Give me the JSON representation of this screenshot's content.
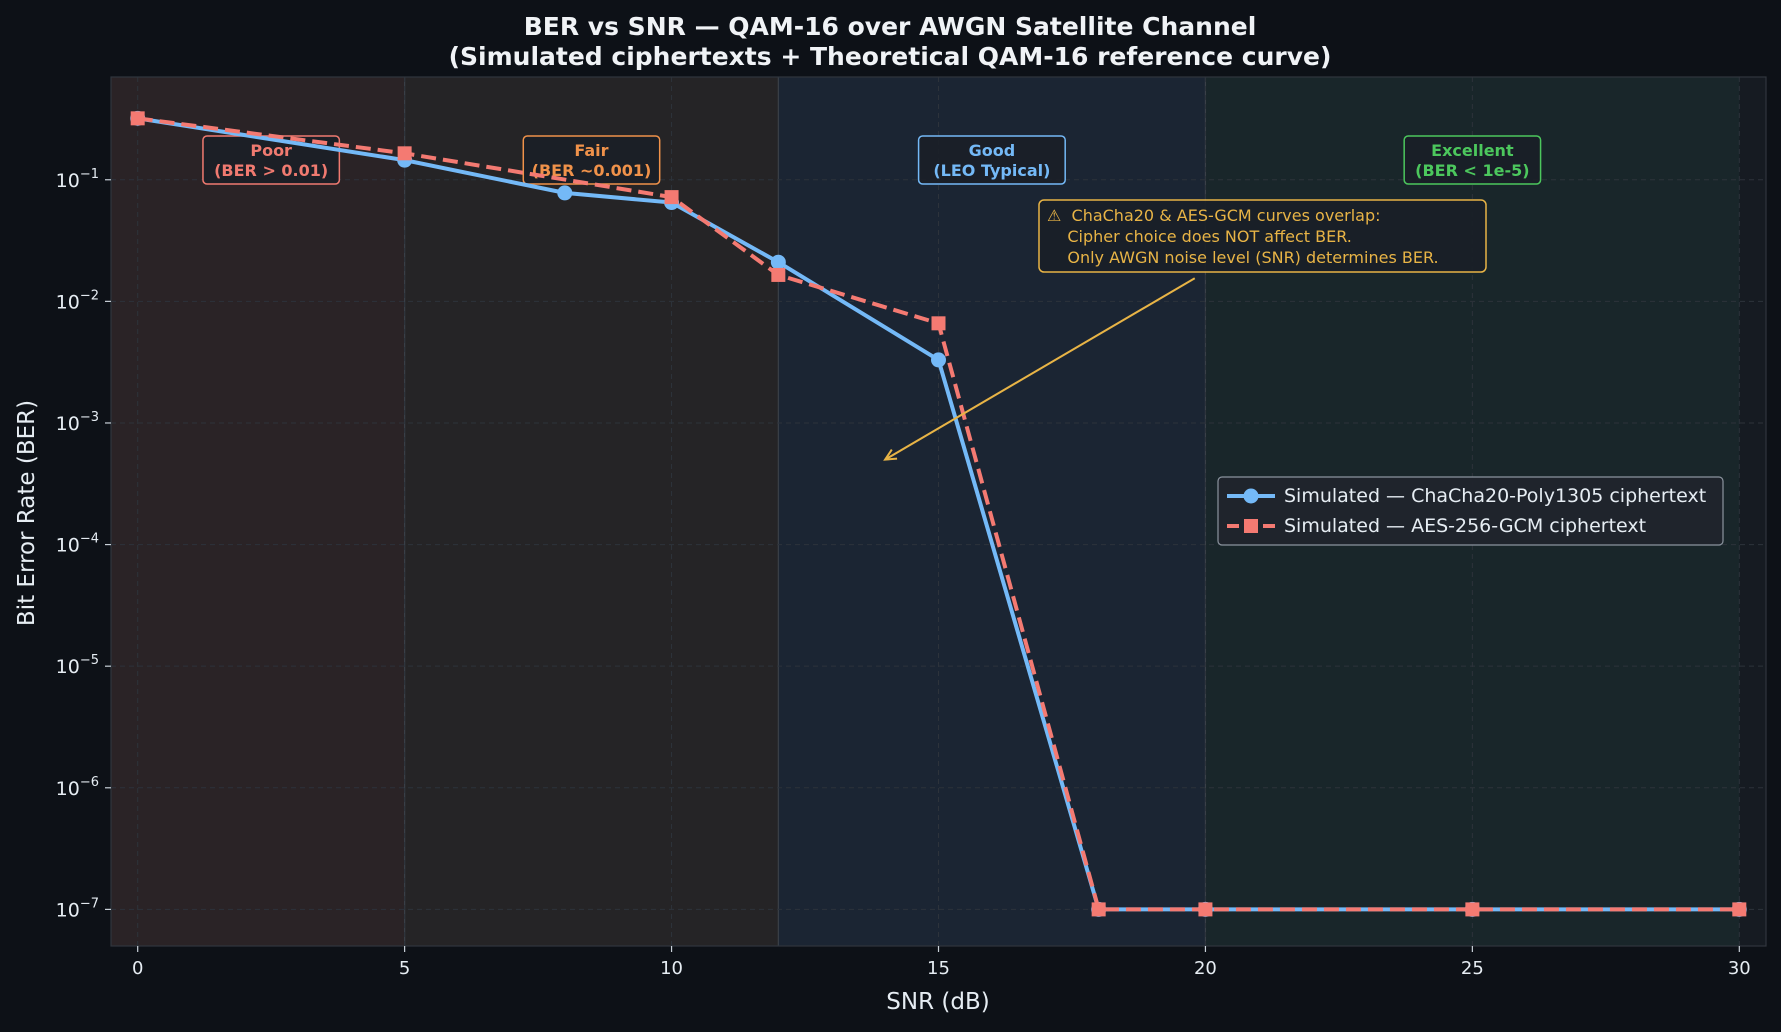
{
  "chart_data": {
    "type": "line",
    "title": "BER vs SNR — QAM-16 over AWGN Satellite Channel",
    "subtitle": "(Simulated ciphertexts + Theoretical QAM-16 reference curve)",
    "xlabel": "SNR (dB)",
    "ylabel": "Bit Error Rate (BER)",
    "xlim": [
      -0.5,
      30.5
    ],
    "ylim": [
      5e-08,
      0.7
    ],
    "yscale": "log",
    "x_ticks": [
      0,
      5,
      10,
      15,
      20,
      25,
      30
    ],
    "y_ticks": [
      {
        "value": 1e-07,
        "base": "10",
        "exp": "−7"
      },
      {
        "value": 1e-06,
        "base": "10",
        "exp": "−6"
      },
      {
        "value": 1e-05,
        "base": "10",
        "exp": "−5"
      },
      {
        "value": 0.0001,
        "base": "10",
        "exp": "−4"
      },
      {
        "value": 0.001,
        "base": "10",
        "exp": "−3"
      },
      {
        "value": 0.01,
        "base": "10",
        "exp": "−2"
      },
      {
        "value": 0.1,
        "base": "10",
        "exp": "−1"
      }
    ],
    "grid": true,
    "legend_position": "center-right",
    "series": [
      {
        "name": "Simulated — ChaCha20-Poly1305 ciphertext",
        "color": "#74b9f7",
        "style": "solid",
        "marker": "circle",
        "x": [
          0,
          5,
          8,
          10,
          12,
          15,
          18,
          20,
          25,
          30
        ],
        "y": [
          0.32,
          0.145,
          0.078,
          0.065,
          0.021,
          0.0033,
          1e-07,
          1e-07,
          1e-07,
          1e-07
        ]
      },
      {
        "name": "Simulated — AES-256-GCM ciphertext",
        "color": "#f47a72",
        "style": "dashed",
        "marker": "square",
        "x": [
          0,
          5,
          10,
          12,
          15,
          18,
          20,
          25,
          30
        ],
        "y": [
          0.32,
          0.165,
          0.072,
          0.0165,
          0.0066,
          1e-07,
          1e-07,
          1e-07,
          1e-07
        ]
      }
    ],
    "regions": [
      {
        "from": -0.5,
        "to": 5,
        "color": "#2a2326"
      },
      {
        "from": 5,
        "to": 12,
        "color": "#252426"
      },
      {
        "from": 12,
        "to": 20,
        "color": "#1b2533"
      },
      {
        "from": 20,
        "to": 30,
        "color": "#19262a"
      }
    ],
    "region_lines": [
      5,
      12,
      20
    ],
    "zone_labels": [
      {
        "x": 2.5,
        "line1": "Poor",
        "line2": "(BER > 0.01)",
        "color": "#f07a70"
      },
      {
        "x": 8.5,
        "line1": "Fair",
        "line2": "(BER ~0.001)",
        "color": "#f0924a"
      },
      {
        "x": 16,
        "line1": "Good",
        "line2": "(LEO Typical)",
        "color": "#74b9f7"
      },
      {
        "x": 25,
        "line1": "Excellent",
        "line2": "(BER < 1e-5)",
        "color": "#4cc75d"
      }
    ],
    "annotation": {
      "lines": [
        "⚠  ChaCha20 & AES-GCM curves overlap:",
        "    Cipher choice does NOT affect BER.",
        "    Only AWGN noise level (SNR) determines BER."
      ],
      "color": "#e8b446",
      "arrow_from": {
        "x": 19.8,
        "y": 0.0155
      },
      "arrow_to": {
        "x": 14,
        "y": 0.0005
      }
    }
  }
}
